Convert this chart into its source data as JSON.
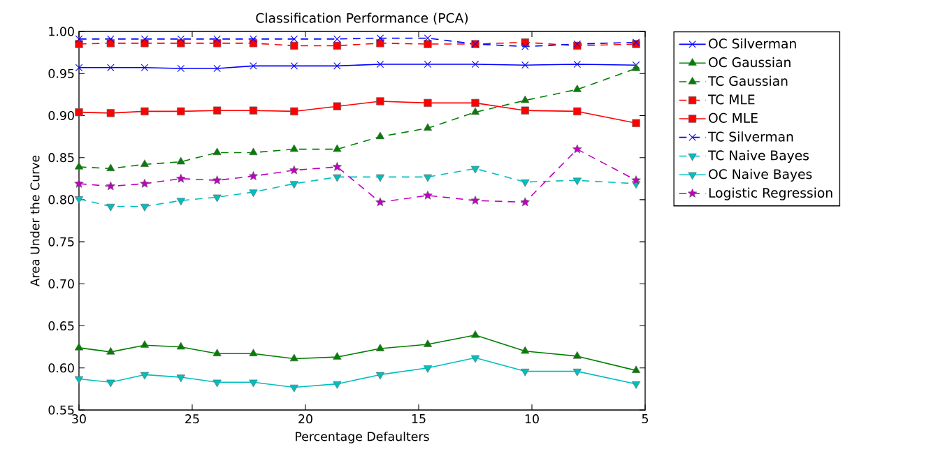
{
  "chart_data": {
    "type": "line",
    "title": "Classification Performance (PCA)",
    "xlabel": "Percentage Defaulters",
    "ylabel": "Area Under the Curve",
    "x": [
      30,
      28.6,
      27.1,
      25.5,
      23.9,
      22.3,
      20.5,
      18.6,
      16.7,
      14.6,
      12.5,
      10.3,
      8.0,
      5.4
    ],
    "series": [
      {
        "name": "OC Silverman",
        "color": "#0000ff",
        "marker": "cross",
        "line_style": "solid",
        "values": [
          0.957,
          0.957,
          0.957,
          0.956,
          0.956,
          0.959,
          0.959,
          0.959,
          0.961,
          0.961,
          0.961,
          0.96,
          0.961,
          0.96
        ]
      },
      {
        "name": "OC Gaussian",
        "color": "#008000",
        "marker": "triangle",
        "line_style": "solid",
        "values": [
          0.624,
          0.619,
          0.627,
          0.625,
          0.617,
          0.617,
          0.611,
          0.613,
          0.623,
          0.628,
          0.639,
          0.62,
          0.614,
          0.597
        ]
      },
      {
        "name": "TC Gaussian",
        "color": "#008000",
        "marker": "triangle",
        "line_style": "dashed",
        "values": [
          0.839,
          0.837,
          0.842,
          0.845,
          0.856,
          0.856,
          0.86,
          0.86,
          0.875,
          0.885,
          0.904,
          0.918,
          0.931,
          0.956
        ]
      },
      {
        "name": "TC MLE",
        "color": "#ff0000",
        "marker": "square",
        "line_style": "dashed",
        "values": [
          0.985,
          0.986,
          0.986,
          0.986,
          0.986,
          0.986,
          0.983,
          0.983,
          0.986,
          0.985,
          0.985,
          0.987,
          0.983,
          0.985
        ]
      },
      {
        "name": "OC MLE",
        "color": "#ff0000",
        "marker": "square",
        "line_style": "solid",
        "values": [
          0.904,
          0.903,
          0.905,
          0.905,
          0.906,
          0.906,
          0.905,
          0.911,
          0.917,
          0.915,
          0.915,
          0.906,
          0.905,
          0.891
        ]
      },
      {
        "name": "TC Silverman",
        "color": "#0000ff",
        "marker": "cross",
        "line_style": "dashed",
        "values": [
          0.991,
          0.991,
          0.991,
          0.991,
          0.991,
          0.991,
          0.991,
          0.991,
          0.992,
          0.992,
          0.985,
          0.982,
          0.985,
          0.987
        ]
      },
      {
        "name": "TC Naive Bayes",
        "color": "#00bfbf",
        "marker": "triangle_down",
        "line_style": "dashed",
        "values": [
          0.801,
          0.792,
          0.792,
          0.799,
          0.803,
          0.809,
          0.819,
          0.827,
          0.827,
          0.827,
          0.837,
          0.821,
          0.823,
          0.819
        ]
      },
      {
        "name": "OC Naive Bayes",
        "color": "#00bfbf",
        "marker": "triangle_down",
        "line_style": "solid",
        "values": [
          0.587,
          0.583,
          0.592,
          0.589,
          0.583,
          0.583,
          0.577,
          0.581,
          0.592,
          0.6,
          0.612,
          0.596,
          0.596,
          0.581
        ]
      },
      {
        "name": "Logistic Regression",
        "color": "#bf00bf",
        "marker": "star",
        "line_style": "dashed",
        "values": [
          0.819,
          0.816,
          0.819,
          0.825,
          0.823,
          0.828,
          0.835,
          0.839,
          0.797,
          0.805,
          0.799,
          0.797,
          0.86,
          0.823
        ]
      }
    ],
    "xlim": [
      30,
      5
    ],
    "xticks": [
      30,
      25,
      20,
      15,
      10,
      5
    ],
    "ylim": [
      0.55,
      1.0
    ],
    "yticks": [
      {
        "value": 0.55,
        "label": "0.55"
      },
      {
        "value": 0.6,
        "label": "0.60"
      },
      {
        "value": 0.65,
        "label": "0.65"
      },
      {
        "value": 0.7,
        "label": "0.70"
      },
      {
        "value": 0.75,
        "label": "0.75"
      },
      {
        "value": 0.8,
        "label": "0.80"
      },
      {
        "value": 0.85,
        "label": "0.85"
      },
      {
        "value": 0.9,
        "label": "0.90"
      },
      {
        "value": 0.95,
        "label": "0.95"
      },
      {
        "value": 1.0,
        "label": "1.00"
      }
    ],
    "legend": "right",
    "grid": false
  }
}
